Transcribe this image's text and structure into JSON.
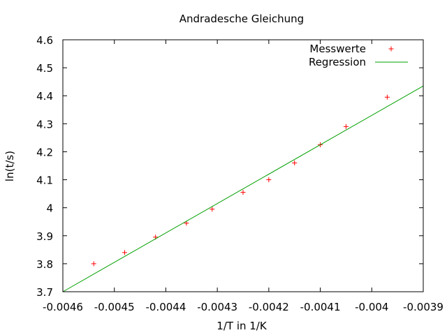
{
  "chart_data": {
    "type": "scatter",
    "title": "Andradesche Gleichung",
    "xlabel": "1/T in 1/K",
    "ylabel": "ln(t/s)",
    "xlim": [
      -0.0046,
      -0.0039
    ],
    "ylim": [
      3.7,
      4.6
    ],
    "x_ticks": [
      -0.0046,
      -0.0045,
      -0.0044,
      -0.0043,
      -0.0042,
      -0.0041,
      -0.004,
      -0.0039
    ],
    "x_tick_labels": [
      "-0.0046",
      "-0.0045",
      "-0.0044",
      "-0.0043",
      "-0.0042",
      "-0.0041",
      "-0.004",
      "-0.0039"
    ],
    "y_ticks": [
      3.7,
      3.8,
      3.9,
      4.0,
      4.1,
      4.2,
      4.3,
      4.4,
      4.5,
      4.6
    ],
    "y_tick_labels": [
      "3.7",
      "3.8",
      "3.9",
      "4",
      "4.1",
      "4.2",
      "4.3",
      "4.4",
      "4.5",
      "4.6"
    ],
    "grid": false,
    "legend_position": "top-right",
    "series": [
      {
        "name": "Messwerte",
        "kind": "points",
        "marker": "plus",
        "color": "#ff0000",
        "points": [
          {
            "x": -0.00454,
            "y": 3.8
          },
          {
            "x": -0.00448,
            "y": 3.84
          },
          {
            "x": -0.00442,
            "y": 3.895
          },
          {
            "x": -0.00436,
            "y": 3.945
          },
          {
            "x": -0.00431,
            "y": 3.995
          },
          {
            "x": -0.00425,
            "y": 4.055
          },
          {
            "x": -0.0042,
            "y": 4.1
          },
          {
            "x": -0.00415,
            "y": 4.16
          },
          {
            "x": -0.0041,
            "y": 4.225
          },
          {
            "x": -0.00405,
            "y": 4.29
          },
          {
            "x": -0.00397,
            "y": 4.395
          }
        ]
      },
      {
        "name": "Regression",
        "kind": "line",
        "color": "#00a000",
        "points": [
          {
            "x": -0.0046,
            "y": 3.7
          },
          {
            "x": -0.0039,
            "y": 4.435
          }
        ]
      }
    ]
  }
}
